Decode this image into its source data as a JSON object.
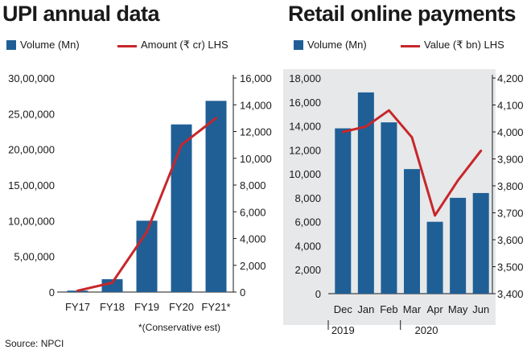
{
  "source": "Source: NPCI",
  "chart_data": [
    {
      "type": "bar",
      "title": "UPI annual data",
      "categories": [
        "FY17",
        "FY18",
        "FY19",
        "FY20",
        "FY21*"
      ],
      "series": [
        {
          "name": "Volume (Mn)",
          "type": "bar",
          "axis": "left",
          "values": [
            20000,
            180000,
            1000000,
            2350000,
            2680000
          ]
        },
        {
          "name": "Amount (₹ cr) LHS",
          "type": "line",
          "axis": "right",
          "values": [
            100,
            700,
            4500,
            11000,
            13000
          ]
        }
      ],
      "left_axis": {
        "ticks": [
          "0",
          "5,00,000",
          "10,00,000",
          "15,00,000",
          "20,00,000",
          "25,00,000",
          "30,00,000"
        ],
        "tick_values": [
          0,
          500000,
          1000000,
          1500000,
          2000000,
          2500000,
          3000000
        ],
        "ylim": [
          0,
          3000000
        ]
      },
      "right_axis": {
        "ticks": [
          "0",
          "2,000",
          "4,000",
          "6,000",
          "8,000",
          "10,000",
          "12,000",
          "14,000",
          "16,000"
        ],
        "tick_values": [
          0,
          2000,
          4000,
          6000,
          8000,
          10000,
          12000,
          14000,
          16000
        ],
        "ylim": [
          0,
          16000
        ]
      },
      "footnote": "*(Conservative est)",
      "colors": {
        "bar": "#1f5f96",
        "line": "#c8262a"
      }
    },
    {
      "type": "bar",
      "title": "Retail online payments",
      "categories": [
        "Dec",
        "Jan",
        "Feb",
        "Mar",
        "Apr",
        "May",
        "Jun"
      ],
      "year_labels": [
        {
          "label": "2019",
          "category": "Dec"
        },
        {
          "label": "2020",
          "category": "Mar"
        }
      ],
      "series": [
        {
          "name": "Volume (Mn)",
          "type": "bar",
          "axis": "left",
          "values": [
            13800,
            16800,
            14300,
            10400,
            6000,
            8000,
            8400
          ]
        },
        {
          "name": "Value (₹ bn) LHS",
          "type": "line",
          "axis": "right",
          "values": [
            4000,
            4020,
            4080,
            3980,
            3690,
            3820,
            3930
          ]
        }
      ],
      "left_axis": {
        "ticks": [
          "0",
          "2,000",
          "4,000",
          "6,000",
          "8,000",
          "10,000",
          "12,000",
          "14,000",
          "16,000",
          "18,000"
        ],
        "tick_values": [
          0,
          2000,
          4000,
          6000,
          8000,
          10000,
          12000,
          14000,
          16000,
          18000
        ],
        "ylim": [
          0,
          18000
        ]
      },
      "right_axis": {
        "ticks": [
          "3,400",
          "3,500",
          "3,600",
          "3,700",
          "3,800",
          "3,900",
          "4,000",
          "4,100",
          "4,200"
        ],
        "tick_values": [
          3400,
          3500,
          3600,
          3700,
          3800,
          3900,
          4000,
          4100,
          4200
        ],
        "ylim": [
          3400,
          4200
        ]
      },
      "colors": {
        "bar": "#1f5f96",
        "line": "#c8262a",
        "panel_bg": "#e6e8e9"
      }
    }
  ]
}
